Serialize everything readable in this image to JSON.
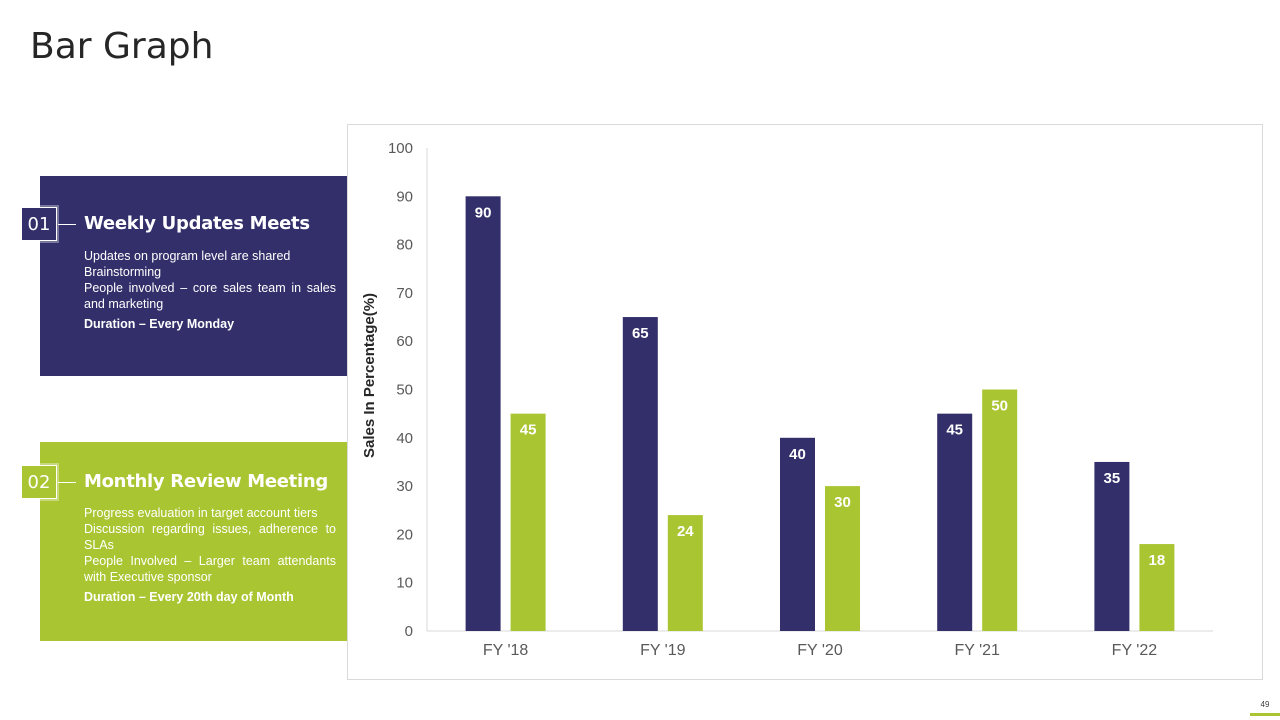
{
  "page": {
    "title": "Bar Graph",
    "page_number": "49"
  },
  "cards": [
    {
      "number": "01",
      "title": "Weekly Updates Meets",
      "lines": [
        "Updates on program level are shared",
        "Brainstorming",
        "People involved  – core sales team in sales and marketing"
      ],
      "duration": "Duration – Every Monday",
      "color": "#322f6a"
    },
    {
      "number": "02",
      "title": "Monthly Review Meeting",
      "lines": [
        "Progress evaluation  in target account tiers",
        "Discussion regarding  issues, adherence to SLAs",
        "People Involved  – Larger team attendants with Executive sponsor"
      ],
      "duration": "Duration – Every 20th day of Month",
      "color": "#aac532"
    }
  ],
  "chart_data": {
    "type": "bar",
    "title": "",
    "xlabel": "",
    "ylabel": "Sales In Percentage(%)",
    "categories": [
      "FY '18",
      "FY '19",
      "FY '20",
      "FY '21",
      "FY '22"
    ],
    "series": [
      {
        "name": "Series 1",
        "values": [
          90,
          65,
          40,
          45,
          35
        ],
        "color": "#322f6a"
      },
      {
        "name": "Series 2",
        "values": [
          45,
          24,
          30,
          50,
          18
        ],
        "color": "#aac532"
      }
    ],
    "ylim": [
      0,
      100
    ],
    "yticks": [
      0,
      10,
      20,
      30,
      40,
      50,
      60,
      70,
      80,
      90,
      100
    ],
    "data_labels": true,
    "grid": false,
    "legend": "none"
  }
}
